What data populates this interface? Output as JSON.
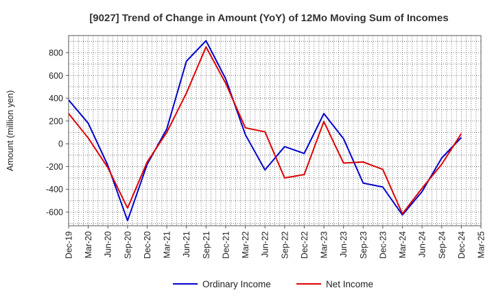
{
  "chart_data": {
    "type": "line",
    "title": "[9027]  Trend of Change in Amount (YoY) of 12Mo Moving Sum of Incomes",
    "xlabel": "",
    "ylabel": "Amount (million yen)",
    "ylim": [
      -720,
      950
    ],
    "yticks": [
      800,
      600,
      400,
      200,
      0,
      -200,
      -400,
      -600
    ],
    "categories": [
      "Dec-19",
      "Mar-20",
      "Jun-20",
      "Sep-20",
      "Dec-20",
      "Mar-21",
      "Jun-21",
      "Sep-21",
      "Dec-21",
      "Mar-22",
      "Jun-22",
      "Sep-22",
      "Dec-22",
      "Mar-23",
      "Jun-23",
      "Sep-23",
      "Dec-23",
      "Mar-24",
      "Jun-24",
      "Sep-24",
      "Dec-24",
      "Mar-25"
    ],
    "grid": true,
    "legend_position": "bottom",
    "series": [
      {
        "name": "Ordinary Income",
        "color": "#0000cc",
        "values": [
          385,
          180,
          -190,
          -675,
          -180,
          130,
          725,
          905,
          570,
          80,
          -230,
          -25,
          -85,
          265,
          45,
          -345,
          -380,
          -625,
          -420,
          -125,
          55,
          null
        ]
      },
      {
        "name": "Net Income",
        "color": "#dd0000",
        "values": [
          265,
          50,
          -210,
          -565,
          -160,
          100,
          445,
          850,
          530,
          140,
          105,
          -300,
          -270,
          195,
          -170,
          -160,
          -225,
          -615,
          -390,
          -180,
          90,
          null
        ]
      }
    ]
  }
}
